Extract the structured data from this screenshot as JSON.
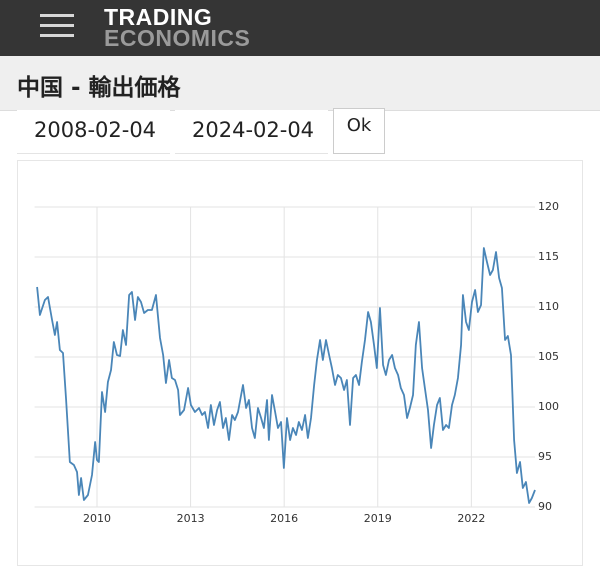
{
  "header": {
    "logo_top": "TRADING",
    "logo_bottom": "ECONOMICS"
  },
  "title": "中国 - 輸出価格",
  "form": {
    "start_date": "2008-02-04",
    "end_date": "2024-02-04",
    "button": "Ok"
  },
  "chart_data": {
    "type": "line",
    "x": [
      2008.08,
      2008.17,
      2008.33,
      2008.43,
      2008.56,
      2008.65,
      2008.72,
      2008.81,
      2008.91,
      2009.01,
      2009.13,
      2009.26,
      2009.36,
      2009.42,
      2009.49,
      2009.58,
      2009.71,
      2009.84,
      2009.94,
      2010.0,
      2010.06,
      2010.16,
      2010.26,
      2010.35,
      2010.45,
      2010.54,
      2010.64,
      2010.74,
      2010.83,
      2010.93,
      2011.03,
      2011.12,
      2011.22,
      2011.31,
      2011.41,
      2011.51,
      2011.63,
      2011.76,
      2011.89,
      2012.02,
      2012.12,
      2012.21,
      2012.31,
      2012.4,
      2012.5,
      2012.6,
      2012.66,
      2012.79,
      2012.92,
      2013.01,
      2013.14,
      2013.27,
      2013.37,
      2013.46,
      2013.56,
      2013.65,
      2013.75,
      2013.85,
      2013.94,
      2014.04,
      2014.13,
      2014.23,
      2014.33,
      2014.42,
      2014.52,
      2014.62,
      2014.68,
      2014.78,
      2014.87,
      2014.97,
      2015.06,
      2015.16,
      2015.26,
      2015.35,
      2015.45,
      2015.51,
      2015.61,
      2015.71,
      2015.8,
      2015.9,
      2015.99,
      2016.09,
      2016.19,
      2016.28,
      2016.38,
      2016.47,
      2016.57,
      2016.67,
      2016.76,
      2016.86,
      2016.96,
      2017.05,
      2017.15,
      2017.24,
      2017.34,
      2017.44,
      2017.53,
      2017.63,
      2017.72,
      2017.82,
      2017.92,
      2018.01,
      2018.11,
      2018.21,
      2018.3,
      2018.4,
      2018.49,
      2018.59,
      2018.69,
      2018.78,
      2018.88,
      2018.97,
      2019.07,
      2019.17,
      2019.26,
      2019.36,
      2019.46,
      2019.55,
      2019.65,
      2019.74,
      2019.84,
      2019.94,
      2020.03,
      2020.13,
      2020.22,
      2020.32,
      2020.42,
      2020.51,
      2020.61,
      2020.71,
      2020.8,
      2020.9,
      2020.99,
      2021.09,
      2021.19,
      2021.28,
      2021.38,
      2021.47,
      2021.57,
      2021.67,
      2021.73,
      2021.83,
      2021.92,
      2022.02,
      2022.12,
      2022.21,
      2022.31,
      2022.4,
      2022.5,
      2022.6,
      2022.69,
      2022.79,
      2022.89,
      2022.98,
      2023.08,
      2023.17,
      2023.27,
      2023.37,
      2023.46,
      2023.56,
      2023.65,
      2023.75,
      2023.85,
      2023.94,
      2024.04
    ],
    "series": [
      {
        "color": "#4a86b8",
        "values": [
          112,
          109.2,
          110.7,
          111,
          108.7,
          107.2,
          108.5,
          105.7,
          105.4,
          100.7,
          94.5,
          94.2,
          93.5,
          91.2,
          92.9,
          90.7,
          91.2,
          93.2,
          96.5,
          94.7,
          94.5,
          101.5,
          99.5,
          102.5,
          103.7,
          106.5,
          105.2,
          105.1,
          107.7,
          106.2,
          111.2,
          111.5,
          108.7,
          111,
          110.5,
          109.4,
          109.7,
          109.7,
          111.2,
          106.9,
          105.2,
          102.4,
          104.7,
          102.9,
          102.7,
          101.7,
          99.2,
          99.7,
          101.9,
          100.2,
          99.5,
          99.9,
          99.2,
          99.5,
          97.9,
          100.2,
          98.2,
          99.7,
          100.5,
          97.9,
          98.9,
          96.7,
          99.2,
          98.7,
          99.5,
          101.2,
          102.2,
          99.9,
          100.7,
          97.9,
          96.9,
          99.9,
          98.9,
          97.9,
          100.7,
          96.7,
          101.2,
          99.5,
          97.9,
          98.5,
          93.9,
          98.9,
          96.7,
          97.9,
          97.2,
          98.5,
          97.7,
          99.2,
          96.9,
          98.9,
          102.2,
          104.7,
          106.7,
          104.7,
          106.7,
          105.2,
          103.9,
          102.2,
          103.2,
          102.9,
          101.7,
          102.7,
          98.2,
          102.9,
          103.2,
          102.2,
          104.5,
          106.7,
          109.5,
          108.5,
          106.2,
          103.9,
          109.9,
          104.2,
          103.2,
          104.7,
          105.2,
          103.9,
          103.2,
          101.9,
          101.2,
          98.9,
          99.9,
          101.2,
          106.2,
          108.5,
          103.9,
          101.9,
          99.7,
          95.9,
          98.2,
          100.2,
          100.9,
          97.7,
          98.2,
          97.9,
          100.2,
          101.2,
          102.9,
          106.2,
          111.2,
          108.5,
          107.7,
          110.5,
          111.7,
          109.5,
          110.2,
          115.9,
          114.5,
          113.2,
          113.7,
          115.5,
          112.9,
          111.9,
          106.7,
          107.1,
          105.2,
          96.7,
          93.4,
          94.5,
          91.9,
          92.5,
          90.4,
          90.9,
          91.7
        ]
      }
    ],
    "xlim": [
      2008,
      2024.04
    ],
    "xticks": [
      2010,
      2013,
      2016,
      2019,
      2022
    ],
    "ylim": [
      90,
      120
    ],
    "yticks": [
      90,
      95,
      100,
      105,
      110,
      115,
      120
    ],
    "grid": true
  }
}
